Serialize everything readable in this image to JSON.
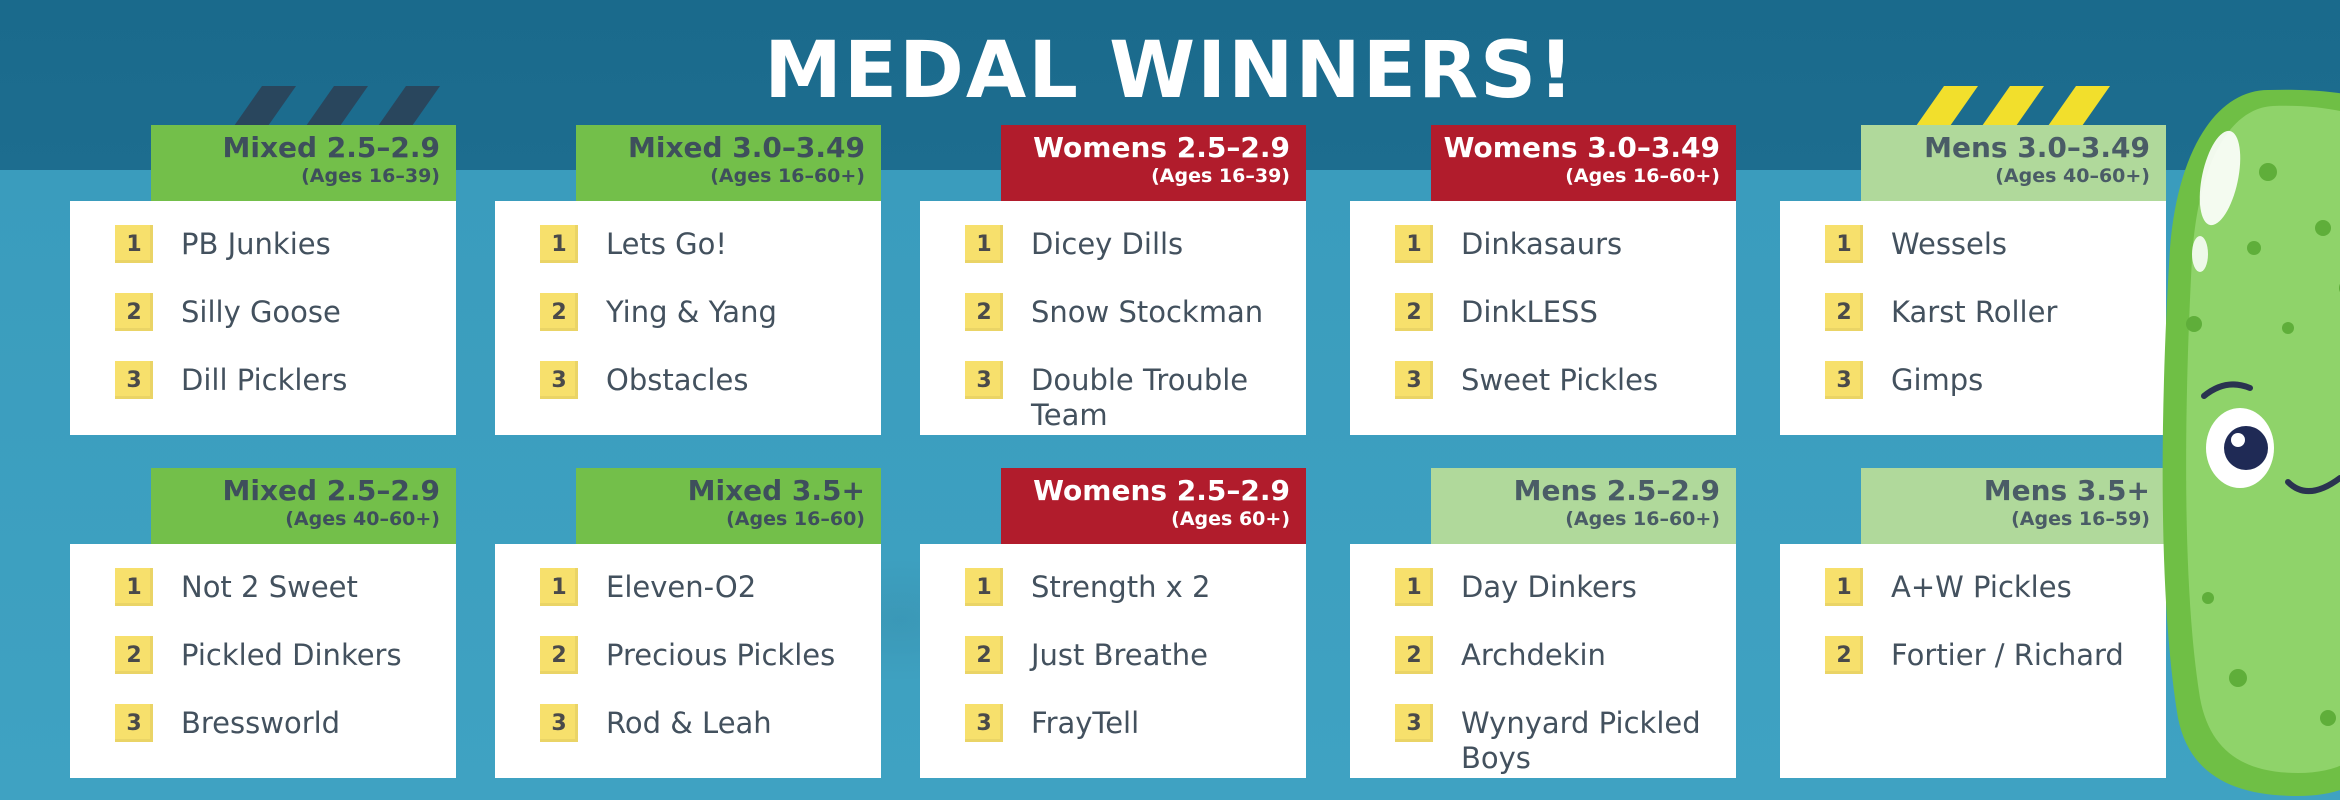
{
  "title": "MEDAL WINNERS!",
  "colors": {
    "background_top": "#1d6d8f",
    "background_bottom": "#3fa2c2",
    "mixed_header": "#73bf4a",
    "womens_header": "#b11c2c",
    "mens_header": "#b0d99b",
    "rank_badge": "#f7e06c",
    "pickle": "#8fd36a"
  },
  "top_row": [
    {
      "name": "Mixed 2.5–2.9",
      "ages": "(Ages 16–39)",
      "winners": [
        {
          "rank": "1",
          "team": "PB Junkies"
        },
        {
          "rank": "2",
          "team": "Silly Goose"
        },
        {
          "rank": "3",
          "team": "Dill Picklers"
        }
      ]
    },
    {
      "name": "Mixed 3.0–3.49",
      "ages": "(Ages 16–60+)",
      "winners": [
        {
          "rank": "1",
          "team": "Lets Go!"
        },
        {
          "rank": "2",
          "team": "Ying & Yang"
        },
        {
          "rank": "3",
          "team": "Obstacles"
        }
      ]
    },
    {
      "name": "Womens 2.5–2.9",
      "ages": "(Ages 16–39)",
      "winners": [
        {
          "rank": "1",
          "team": "Dicey Dills"
        },
        {
          "rank": "2",
          "team": "Snow Stockman"
        },
        {
          "rank": "3",
          "team": "Double Trouble Team"
        }
      ]
    },
    {
      "name": "Womens 3.0–3.49",
      "ages": "(Ages 16–60+)",
      "winners": [
        {
          "rank": "1",
          "team": "Dinkasaurs"
        },
        {
          "rank": "2",
          "team": "DinkLESS"
        },
        {
          "rank": "3",
          "team": "Sweet Pickles"
        }
      ]
    },
    {
      "name": "Mens 3.0–3.49",
      "ages": "(Ages 40–60+)",
      "winners": [
        {
          "rank": "1",
          "team": "Wessels"
        },
        {
          "rank": "2",
          "team": "Karst Roller"
        },
        {
          "rank": "3",
          "team": "Gimps"
        }
      ]
    }
  ],
  "bottom_row": [
    {
      "name": "Mixed 2.5–2.9",
      "ages": "(Ages 40–60+)",
      "winners": [
        {
          "rank": "1",
          "team": "Not 2 Sweet"
        },
        {
          "rank": "2",
          "team": "Pickled Dinkers"
        },
        {
          "rank": "3",
          "team": "Bressworld"
        }
      ]
    },
    {
      "name": "Mixed 3.5+",
      "ages": "(Ages 16–60)",
      "winners": [
        {
          "rank": "1",
          "team": "Eleven-O2"
        },
        {
          "rank": "2",
          "team": "Precious Pickles"
        },
        {
          "rank": "3",
          "team": "Rod & Leah"
        }
      ]
    },
    {
      "name": "Womens 2.5–2.9",
      "ages": "(Ages 60+)",
      "winners": [
        {
          "rank": "1",
          "team": "Strength x 2"
        },
        {
          "rank": "2",
          "team": "Just Breathe"
        },
        {
          "rank": "3",
          "team": "FrayTell"
        }
      ]
    },
    {
      "name": "Mens 2.5–2.9",
      "ages": "(Ages 16–60+)",
      "winners": [
        {
          "rank": "1",
          "team": "Day Dinkers"
        },
        {
          "rank": "2",
          "team": "Archdekin"
        },
        {
          "rank": "3",
          "team": "Wynyard Pickled Boys"
        }
      ]
    },
    {
      "name": "Mens 3.5+",
      "ages": "(Ages 16–59)",
      "winners": [
        {
          "rank": "1",
          "team": "A+W Pickles"
        },
        {
          "rank": "2",
          "team": "Fortier / Richard"
        }
      ]
    }
  ]
}
